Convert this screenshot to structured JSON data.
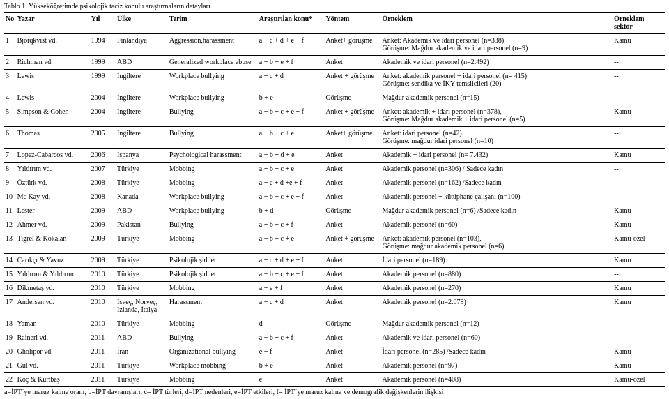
{
  "title": "Tablo 1: Yükseköğretimde psikolojik taciz konulu araştırmaların detayları",
  "headers": {
    "no": "No",
    "author": "Yazar",
    "year": "Yıl",
    "country": "Ülke",
    "term": "Terim",
    "topic": "Araştırılan konu*",
    "method": "Yöntem",
    "sample": "Örneklem",
    "sector": "Örneklem sektör"
  },
  "rows": [
    {
      "no": "1",
      "author": "Björqkvist vd.",
      "year": "1994",
      "country": "Finlandiya",
      "term": "Aggression,harassment",
      "topic": "a + c + d + e + f",
      "method": "Anket+ görüşme",
      "sample": "Anket: Akademik ve idari personel (n=338)\nGörüşme: Mağdur akademik ve idari personel (n=9)",
      "sector": "Kamu"
    },
    {
      "no": "2",
      "author": "Richman vd.",
      "year": "1999",
      "country": "ABD",
      "term": "Generalized workplace abuse",
      "topic": "a + b + e + f",
      "method": "Anket",
      "sample": "Akademik ve idari personel (n=2.492)",
      "sector": "--"
    },
    {
      "no": "3",
      "author": "Lewis",
      "year": "1999",
      "country": "İngiltere",
      "term": "Workplace bullying",
      "topic": "a + c + d",
      "method": "Anket + görüşme",
      "sample": "Anket: akademik personel + idari personel (n= 415)\nGörüşme: sendika ve İKY temsilcileri (20)",
      "sector": "--"
    },
    {
      "no": "4",
      "author": "Lewis",
      "year": "2004",
      "country": "İngiltere",
      "term": "Workplace bullying",
      "topic": "b + e",
      "method": "Görüşme",
      "sample": "Mağdur akademik personel (n=15)",
      "sector": "--"
    },
    {
      "no": "5",
      "author": "Simpson & Cohen",
      "year": "2004",
      "country": "İngiltere",
      "term": "Bullying",
      "topic": "a + b + c  + e + f",
      "method": "Anket + görüşme",
      "sample": "Anket: akademik + idari personel (n=378),\nGörüşme: Mağdur akademik + idari personel (n=5)",
      "sector": "Kamu"
    },
    {
      "no": "6",
      "author": "Thomas",
      "year": "2005",
      "country": "İngiltere",
      "term": "Bullying",
      "topic": "a + b + c + e",
      "method": "Anket+ görüşme",
      "sample": "Anket: idari personel (n=42)\nGörüşme: mağdur idari personel (n=10)",
      "sector": "--"
    },
    {
      "no": "7",
      "author": "Lopez-Cabarcos vd.",
      "year": "2006",
      "country": "İspanya",
      "term": "Psychological harassment",
      "topic": "a + b + d + e",
      "method": "Anket",
      "sample": "Akademik + idari personel (n= 7.432)",
      "sector": "Kamu"
    },
    {
      "no": "8",
      "author": "Yıldırım vd.",
      "year": "2007",
      "country": "Türkiye",
      "term": "Mobbing",
      "topic": "a + b + c + e",
      "method": "Anket",
      "sample": "Akademik personel (n=306) / Sadece kadın",
      "sector": "--"
    },
    {
      "no": "9",
      "author": "Öztürk vd.",
      "year": "2008",
      "country": "Türkiye",
      "term": "Mobbing",
      "topic": "a + c + d +e + f",
      "method": "Anket",
      "sample": "Akademik personel (n=162) /Sadece kadın",
      "sector": "--"
    },
    {
      "no": "10",
      "author": "Mc Kay vd.",
      "year": "2008",
      "country": "Kanada",
      "term": "Workplace bullying",
      "topic": "a + b + c + e + f",
      "method": "Anket",
      "sample": "Akademik personel + kütüphane çalışanı (n=100)",
      "sector": "--"
    },
    {
      "no": "11",
      "author": "Lester",
      "year": "2009",
      "country": "ABD",
      "term": "Workplace bullying",
      "topic": "b + d",
      "method": "Görüşme",
      "sample": "Mağdur akademik personel (n=6) /Sadece kadın",
      "sector": "Kamu"
    },
    {
      "no": "12",
      "author": "Ahmer vd.",
      "year": "2009",
      "country": "Pakistan",
      "term": "Bullying",
      "topic": "a + b + c + f",
      "method": "Anket",
      "sample": "Akademik personel (n=60)",
      "sector": "Kamu"
    },
    {
      "no": "13",
      "author": "Tigrel & Kokalan",
      "year": "2009",
      "country": "Türkiye",
      "term": "Mobbing",
      "topic": "a + b + c + e",
      "method": "Anket + görüşme",
      "sample": "Anket: akademik personel (n=103),\nGörüşme: mağdur akademik personel (n=6)",
      "sector": "Kamu-özel"
    },
    {
      "no": "14",
      "author": "Çarıkçı & Yavuz",
      "year": "2009",
      "country": "Türkiye",
      "term": "Psikolojik şiddet",
      "topic": "a + c + d + e + f",
      "method": "Anket",
      "sample": "İdari personel (n=189)",
      "sector": "Kamu"
    },
    {
      "no": "15",
      "author": "Yıldırım & Yıldırım",
      "year": "2010",
      "country": "Türkiye",
      "term": "Psikolojik şiddet",
      "topic": "a + b + c + e + f",
      "method": "Anket",
      "sample": "Akademik personel (n=880)",
      "sector": "--"
    },
    {
      "no": "16",
      "author": "Dikmetaş vd.",
      "year": "2010",
      "country": "Türkiye",
      "term": "Mobbing",
      "topic": "a + e + f",
      "method": "Anket",
      "sample": "Akademik personel (n=270)",
      "sector": "Kamu"
    },
    {
      "no": "17",
      "author": "Andersen vd.",
      "year": "2010",
      "country": "İsveç, Norveç, İzlanda, İtalya",
      "term": "Harassment",
      "topic": "a + c + d",
      "method": "Anket",
      "sample": "Akademik personel (n=2.078)",
      "sector": "Kamu"
    },
    {
      "no": "18",
      "author": "Yaman",
      "year": "2010",
      "country": "Türkiye",
      "term": "Mobbing",
      "topic": "d",
      "method": "Görüşme",
      "sample": "Mağdur akademik personel (n=12)",
      "sector": "--"
    },
    {
      "no": "19",
      "author": "Raineri vd.",
      "year": "2011",
      "country": "ABD",
      "term": "Bullying",
      "topic": "a + b + c + f",
      "method": "Anket",
      "sample": "Akademik ve idari personel (n=60)",
      "sector": "--"
    },
    {
      "no": "20",
      "author": "Gholipor vd.",
      "year": "2011",
      "country": "İran",
      "term": "Organizational bullying",
      "topic": "e + f",
      "method": "Anket",
      "sample": "İdari personel (n=285) /Sadece kadın",
      "sector": "Kamu"
    },
    {
      "no": "21",
      "author": "Gül vd.",
      "year": "2011",
      "country": "Türkiye",
      "term": "Workplace mobbing",
      "topic": "b + e",
      "method": "Anket",
      "sample": "Akademik personel (n=97)",
      "sector": "Kamu"
    },
    {
      "no": "22",
      "author": "Koç & Kurtbaş",
      "year": "2011",
      "country": "Türkiye",
      "term": "Mobbing",
      "topic": "e",
      "method": "Anket",
      "sample": "Akademik personel (n=408)",
      "sector": "Kamu-özel"
    }
  ],
  "footnote": "a=İPT`ye maruz kalma oranı, b=İPT davranışları, c= İPT türleri, d=İPT nedenleri, e=İPT etkileri, f= İPT`ye maruz kalma ve demografik değişkenlerin ilişkisi"
}
